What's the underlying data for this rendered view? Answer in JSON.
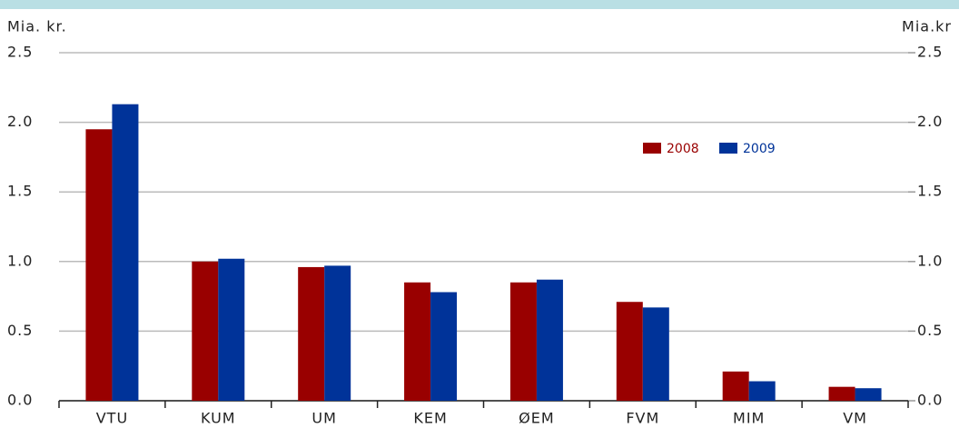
{
  "chart_data": {
    "type": "bar",
    "y_label": "Mia. kr.",
    "y2_label": "Mia.kr",
    "categories": [
      "VTU",
      "KUM",
      "UM",
      "KEM",
      "ØEM",
      "FVM",
      "MIM",
      "VM"
    ],
    "series": [
      {
        "name": "2008",
        "color": "#990000",
        "values": [
          1.95,
          1.0,
          0.96,
          0.85,
          0.85,
          0.71,
          0.21,
          0.1
        ]
      },
      {
        "name": "2009",
        "color": "#003399",
        "values": [
          2.13,
          1.02,
          0.97,
          0.78,
          0.87,
          0.67,
          0.14,
          0.09
        ]
      }
    ],
    "ylim": [
      0,
      2.5
    ],
    "yticks": [
      {
        "value": 0,
        "label": "0.0"
      },
      {
        "value": 0.5,
        "label": "0.5"
      },
      {
        "value": 1,
        "label": "1.0"
      },
      {
        "value": 1.5,
        "label": "1.5"
      },
      {
        "value": 2,
        "label": "2.0"
      },
      {
        "value": 2.5,
        "label": "2.5"
      }
    ],
    "y2lim": [
      0,
      2.5
    ],
    "y2ticks": [
      {
        "value": 0,
        "label": "0.0"
      },
      {
        "value": 0.5,
        "label": "0.5"
      },
      {
        "value": 1,
        "label": "1.0"
      },
      {
        "value": 1.5,
        "label": "1.5"
      },
      {
        "value": 2,
        "label": "2.0"
      },
      {
        "value": 2.5,
        "label": "2.5"
      }
    ],
    "grid": true
  }
}
